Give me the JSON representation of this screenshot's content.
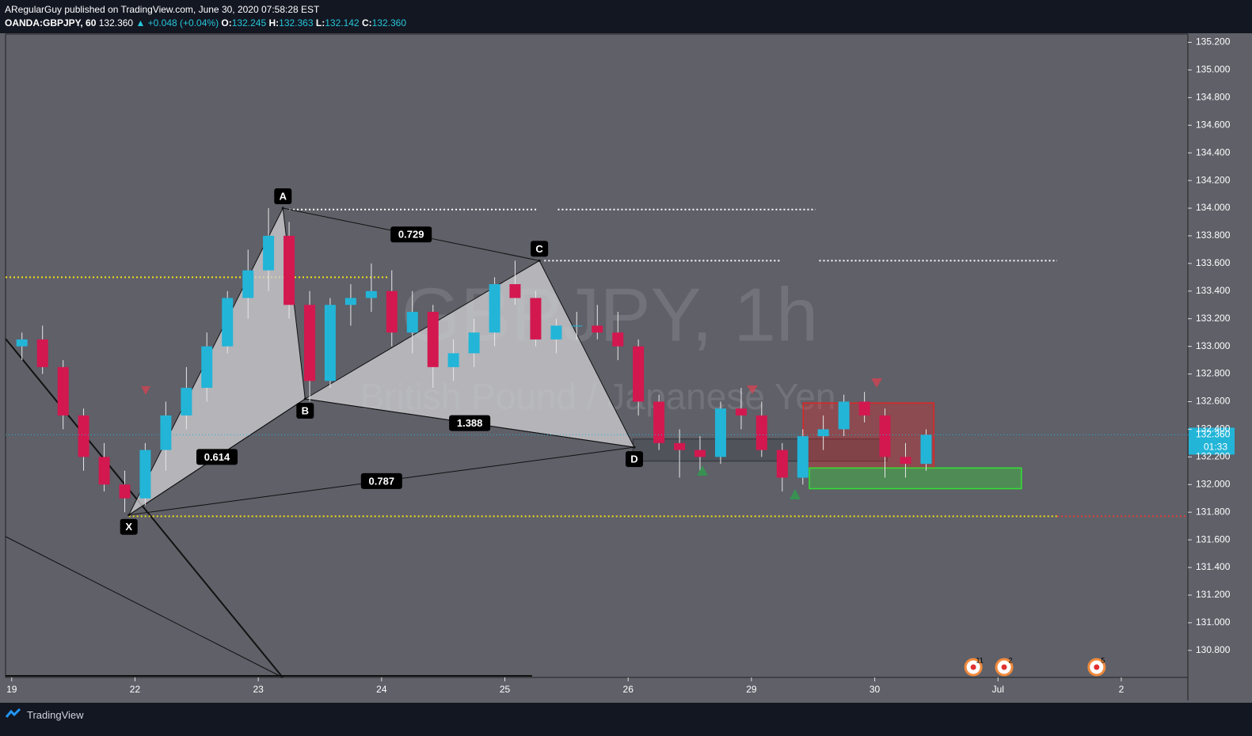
{
  "header": {
    "publisher": "ARegularGuy published on TradingView.com, June 30, 2020 07:58:28 EST",
    "symbol": "OANDA:GBPJPY, 60",
    "last": "132.360",
    "change": "▲ +0.048 (+0.04%)",
    "ohlc": [
      {
        "label": "O:",
        "value": "132.245"
      },
      {
        "label": "H:",
        "value": "132.363"
      },
      {
        "label": "L:",
        "value": "132.142"
      },
      {
        "label": "C:",
        "value": "132.360"
      }
    ]
  },
  "chart_data": {
    "type": "candlestick",
    "watermark": "GBPJPY, 1h",
    "watermark_subtitle": "British Pound / Japanese Yen",
    "x": [
      0.083,
      0.25,
      0.417,
      0.583,
      0.75,
      0.917,
      1.083,
      1.25,
      1.417,
      1.583,
      1.75,
      1.917,
      2.083,
      2.25,
      2.417,
      2.583,
      2.75,
      2.917,
      3.083,
      3.25,
      3.417,
      3.583,
      3.75,
      3.917,
      4.083,
      4.25,
      4.417,
      4.583,
      4.75,
      4.917,
      5.083,
      5.25,
      5.417,
      5.583,
      5.75,
      5.917,
      6.083,
      6.25,
      6.417,
      6.583,
      6.75,
      6.917,
      7.083,
      7.25,
      7.417
    ],
    "open": [
      133.0,
      133.05,
      132.85,
      132.5,
      132.2,
      132.0,
      131.9,
      132.25,
      132.5,
      132.7,
      133.0,
      133.35,
      133.55,
      133.8,
      133.3,
      132.75,
      133.3,
      133.35,
      133.4,
      133.1,
      133.25,
      132.85,
      132.95,
      133.1,
      133.45,
      133.35,
      133.05,
      133.15,
      133.15,
      133.1,
      133.0,
      132.6,
      132.3,
      132.25,
      132.2,
      132.55,
      132.5,
      132.25,
      132.05,
      132.35,
      132.4,
      132.6,
      132.5,
      132.2,
      132.15
    ],
    "high": [
      133.1,
      133.15,
      132.9,
      132.55,
      132.3,
      132.1,
      132.3,
      132.6,
      132.85,
      133.1,
      133.4,
      133.7,
      134.0,
      133.9,
      133.4,
      133.35,
      133.45,
      133.6,
      133.55,
      133.4,
      133.3,
      133.05,
      133.2,
      133.5,
      133.62,
      133.4,
      133.2,
      133.25,
      133.3,
      133.25,
      133.05,
      132.65,
      132.4,
      132.35,
      132.6,
      132.7,
      132.6,
      132.3,
      132.4,
      132.5,
      132.65,
      132.67,
      132.55,
      132.3,
      132.4
    ],
    "low": [
      132.9,
      132.8,
      132.4,
      132.1,
      131.95,
      131.8,
      131.85,
      132.1,
      132.4,
      132.6,
      132.95,
      133.2,
      133.4,
      133.2,
      132.6,
      132.7,
      133.15,
      133.25,
      133.0,
      132.95,
      132.7,
      132.75,
      132.85,
      133.0,
      133.3,
      133.0,
      132.95,
      133.05,
      133.05,
      132.9,
      132.5,
      132.25,
      132.05,
      132.1,
      132.15,
      132.4,
      132.2,
      131.95,
      132.0,
      132.25,
      132.35,
      132.45,
      132.05,
      132.05,
      132.1
    ],
    "close": [
      133.05,
      132.85,
      132.5,
      132.2,
      132.0,
      131.9,
      132.25,
      132.5,
      132.7,
      133.0,
      133.35,
      133.55,
      133.8,
      133.3,
      132.75,
      133.3,
      133.35,
      133.4,
      133.1,
      133.25,
      132.85,
      132.95,
      133.1,
      133.45,
      133.35,
      133.05,
      133.15,
      133.15,
      133.1,
      133.0,
      132.6,
      132.3,
      132.25,
      132.2,
      132.55,
      132.5,
      132.25,
      132.05,
      132.35,
      132.4,
      132.6,
      132.5,
      132.2,
      132.15,
      132.36
    ],
    "up_color": "#22b5d8",
    "down_color": "#d3184f",
    "xlim": [
      -0.05,
      9.54
    ],
    "xticks": [
      {
        "value": 0,
        "label": "19"
      },
      {
        "value": 1,
        "label": "22"
      },
      {
        "value": 2,
        "label": "23"
      },
      {
        "value": 3,
        "label": "24"
      },
      {
        "value": 4,
        "label": "25"
      },
      {
        "value": 5,
        "label": "26"
      },
      {
        "value": 6,
        "label": "29"
      },
      {
        "value": 7,
        "label": "30"
      },
      {
        "value": 8,
        "label": "Jul"
      },
      {
        "value": 9,
        "label": "2"
      }
    ],
    "ylim": [
      130.61,
      135.26
    ],
    "yticks": [
      {
        "value": 130.8,
        "label": "130.800"
      },
      {
        "value": 131.0,
        "label": "131.000"
      },
      {
        "value": 131.2,
        "label": "131.200"
      },
      {
        "value": 131.4,
        "label": "131.400"
      },
      {
        "value": 131.6,
        "label": "131.600"
      },
      {
        "value": 131.8,
        "label": "131.800"
      },
      {
        "value": 132.0,
        "label": "132.000"
      },
      {
        "value": 132.2,
        "label": "132.200"
      },
      {
        "value": 132.4,
        "label": "132.400"
      },
      {
        "value": 132.6,
        "label": "132.600"
      },
      {
        "value": 132.8,
        "label": "132.800"
      },
      {
        "value": 133.0,
        "label": "133.000"
      },
      {
        "value": 133.2,
        "label": "133.200"
      },
      {
        "value": 133.4,
        "label": "133.400"
      },
      {
        "value": 133.6,
        "label": "133.600"
      },
      {
        "value": 133.8,
        "label": "133.800"
      },
      {
        "value": 134.0,
        "label": "134.000"
      },
      {
        "value": 134.2,
        "label": "134.200"
      },
      {
        "value": 134.4,
        "label": "134.400"
      },
      {
        "value": 134.6,
        "label": "134.600"
      },
      {
        "value": 134.8,
        "label": "134.800"
      },
      {
        "value": 135.0,
        "label": "135.000"
      },
      {
        "value": 135.2,
        "label": "135.200"
      }
    ],
    "price_tag": {
      "value": 132.36,
      "label": "132.360",
      "countdown": "01:33"
    },
    "pattern": {
      "points": [
        {
          "label": "X",
          "x": 0.95,
          "price": 131.78
        },
        {
          "label": "A",
          "x": 2.2,
          "price": 134.0
        },
        {
          "label": "B",
          "x": 2.38,
          "price": 132.62
        },
        {
          "label": "C",
          "x": 4.28,
          "price": 133.62
        },
        {
          "label": "D",
          "x": 5.05,
          "price": 132.27
        }
      ],
      "ratios": [
        "0.614",
        "0.729",
        "1.388",
        "0.787"
      ]
    },
    "levels": [
      {
        "price": 133.5,
        "from": -0.05,
        "to": 3.05,
        "color": "#f2e11b"
      },
      {
        "price": 131.77,
        "from": 0.95,
        "to": 8.48,
        "color": "#f2e11b"
      },
      {
        "price": 131.77,
        "from": 8.48,
        "to": 9.54,
        "color": "#e0403c"
      },
      {
        "price": 133.99,
        "from": 2.25,
        "to": 4.27,
        "color": "#ffffff"
      },
      {
        "price": 133.99,
        "from": 4.43,
        "to": 6.52,
        "color": "#ffffff"
      },
      {
        "price": 133.62,
        "from": 4.32,
        "to": 6.23,
        "color": "#ffffff"
      },
      {
        "price": 133.62,
        "from": 6.55,
        "to": 8.48,
        "color": "#ffffff"
      }
    ],
    "zones": [
      {
        "from": 5.04,
        "to": 7.1,
        "low": 132.17,
        "high": 132.33,
        "color": "#3a3c44"
      },
      {
        "from": 6.42,
        "to": 7.48,
        "low": 132.12,
        "high": 132.59,
        "color": "#e02525"
      },
      {
        "from": 6.47,
        "to": 8.19,
        "low": 131.97,
        "high": 132.12,
        "color": "#33e033"
      }
    ],
    "events": [
      {
        "x": 7.8,
        "label": "11"
      },
      {
        "x": 8.05,
        "label": "2"
      },
      {
        "x": 8.8,
        "label": "5"
      }
    ]
  },
  "footer": {
    "brand": "TradingView"
  }
}
